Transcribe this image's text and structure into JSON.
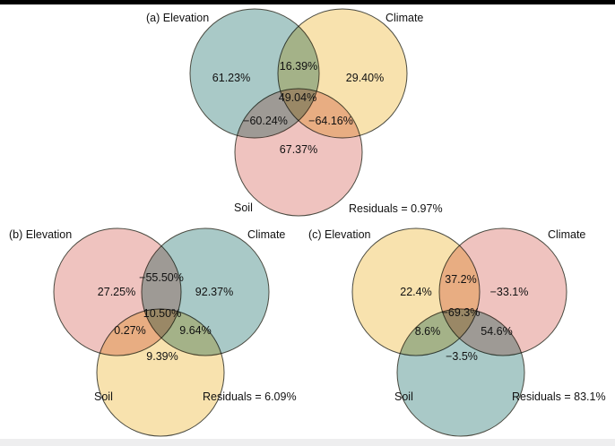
{
  "colors": {
    "teal": "#a9c9c7",
    "yellow": "#f8e2ae",
    "pink": "#efc3bf"
  },
  "panels": [
    {
      "id": "a",
      "title": "(a) Elevation",
      "labels": {
        "climate": "Climate",
        "soil": "Soil",
        "residuals": "Residuals =  0.97%"
      },
      "circle_colors": {
        "elevation": "teal",
        "climate": "yellow",
        "soil": "pink"
      },
      "regions": {
        "elevation_only": "61.23%",
        "elevation_climate": "16.39%",
        "climate_only": "29.40%",
        "all": "49.04%",
        "elevation_soil": "−60.24%",
        "climate_soil": "−64.16%",
        "soil_only": "67.37%"
      }
    },
    {
      "id": "b",
      "title": "(b) Elevation",
      "labels": {
        "climate": "Climate",
        "soil": "Soil",
        "residuals": "Residuals =  6.09%"
      },
      "circle_colors": {
        "elevation": "pink",
        "climate": "teal",
        "soil": "yellow"
      },
      "regions": {
        "elevation_only": "27.25%",
        "elevation_climate": "−55.50%",
        "climate_only": "92.37%",
        "all": "10.50%",
        "elevation_soil": "0.27%",
        "climate_soil": "9.64%",
        "soil_only": "9.39%"
      }
    },
    {
      "id": "c",
      "title": "(c) Elevation",
      "labels": {
        "climate": "Climate",
        "soil": "Soil",
        "residuals": "Residuals =  83.1%"
      },
      "circle_colors": {
        "elevation": "yellow",
        "climate": "pink",
        "soil": "teal"
      },
      "regions": {
        "elevation_only": "22.4%",
        "elevation_climate": "37.2%",
        "climate_only": "−33.1%",
        "all": "−69.3%",
        "elevation_soil": "8.6%",
        "climate_soil": "54.6%",
        "soil_only": "−3.5%"
      }
    }
  ]
}
